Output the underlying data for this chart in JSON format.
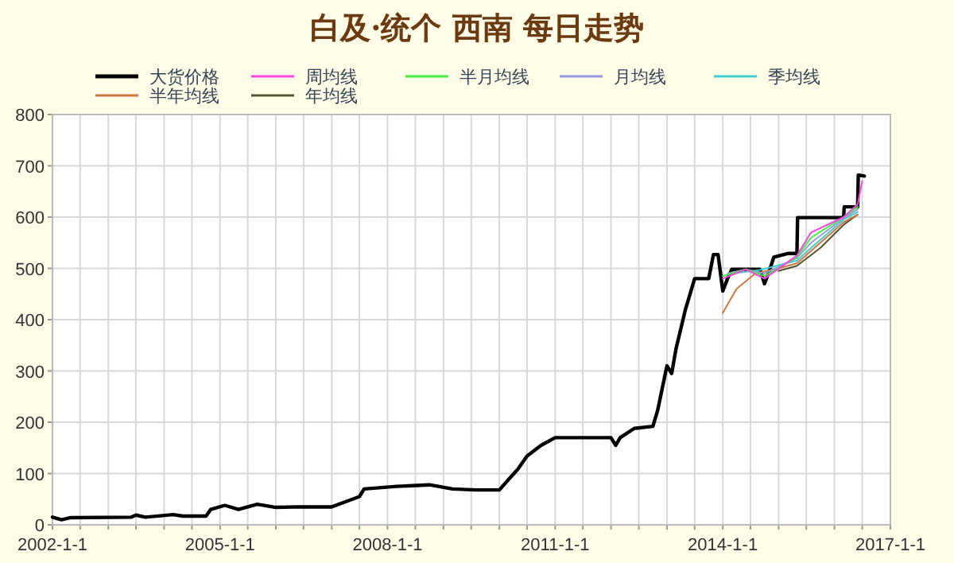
{
  "chart_data": {
    "type": "line",
    "title": "白及·统个 西南 每日走势",
    "xlim": [
      "2002-01-01",
      "2017-01-01"
    ],
    "ylim": [
      0,
      800
    ],
    "yticks": [
      0,
      100,
      200,
      300,
      400,
      500,
      600,
      700,
      800
    ],
    "xticks": [
      {
        "value": "2002-01-01",
        "label": "2002-1-1"
      },
      {
        "value": "2002-07-01",
        "label": null
      },
      {
        "value": "2003-01-01",
        "label": null
      },
      {
        "value": "2003-07-01",
        "label": null
      },
      {
        "value": "2004-01-01",
        "label": null
      },
      {
        "value": "2004-07-01",
        "label": null
      },
      {
        "value": "2005-01-01",
        "label": "2005-1-1"
      },
      {
        "value": "2005-07-01",
        "label": null
      },
      {
        "value": "2006-01-01",
        "label": null
      },
      {
        "value": "2006-07-01",
        "label": null
      },
      {
        "value": "2007-01-01",
        "label": null
      },
      {
        "value": "2007-07-01",
        "label": null
      },
      {
        "value": "2008-01-01",
        "label": "2008-1-1"
      },
      {
        "value": "2008-07-01",
        "label": null
      },
      {
        "value": "2009-01-01",
        "label": null
      },
      {
        "value": "2009-07-01",
        "label": null
      },
      {
        "value": "2010-01-01",
        "label": null
      },
      {
        "value": "2010-07-01",
        "label": null
      },
      {
        "value": "2011-01-01",
        "label": "2011-1-1"
      },
      {
        "value": "2011-07-01",
        "label": null
      },
      {
        "value": "2012-01-01",
        "label": null
      },
      {
        "value": "2012-07-01",
        "label": null
      },
      {
        "value": "2013-01-01",
        "label": null
      },
      {
        "value": "2013-07-01",
        "label": null
      },
      {
        "value": "2014-01-01",
        "label": "2014-1-1"
      },
      {
        "value": "2014-07-01",
        "label": null
      },
      {
        "value": "2015-01-01",
        "label": null
      },
      {
        "value": "2015-07-01",
        "label": null
      },
      {
        "value": "2016-01-01",
        "label": null
      },
      {
        "value": "2016-07-01",
        "label": null
      },
      {
        "value": "2017-01-01",
        "label": "2017-1-1"
      }
    ],
    "grid": true,
    "legend": "top",
    "series": [
      {
        "name": "大货价格",
        "color": "#000000",
        "x": [
          "2002-01-01",
          "2002-03-01",
          "2002-05-01",
          "2003-06-01",
          "2003-07-01",
          "2003-09-01",
          "2004-03-01",
          "2004-05-01",
          "2004-10-01",
          "2004-11-01",
          "2005-02-01",
          "2005-05-01",
          "2005-09-01",
          "2006-01-01",
          "2006-06-01",
          "2007-01-01",
          "2007-04-01",
          "2007-07-01",
          "2007-08-01",
          "2008-03-01",
          "2008-10-01",
          "2009-03-01",
          "2009-08-01",
          "2010-01-01",
          "2010-03-01",
          "2010-05-01",
          "2010-07-01",
          "2010-10-01",
          "2011-01-01",
          "2012-01-01",
          "2012-02-01",
          "2012-03-01",
          "2012-06-01",
          "2012-10-01",
          "2012-11-01",
          "2013-01-01",
          "2013-02-01",
          "2013-03-01",
          "2013-05-01",
          "2013-07-01",
          "2013-10-01",
          "2013-11-01",
          "2013-12-01",
          "2014-01-01",
          "2014-02-01",
          "2014-03-01",
          "2014-09-01",
          "2014-10-01",
          "2014-11-01",
          "2014-12-01",
          "2015-03-01",
          "2015-05-01",
          "2015-05-05",
          "2016-03-01",
          "2016-03-05",
          "2016-06-01",
          "2016-06-05",
          "2016-07-15"
        ],
        "values": [
          15,
          10,
          14,
          15,
          19,
          15,
          20,
          17,
          17,
          30,
          38,
          30,
          40,
          34,
          35,
          35,
          45,
          55,
          70,
          75,
          78,
          70,
          68,
          68,
          88,
          108,
          134,
          155,
          170,
          170,
          155,
          170,
          188,
          192,
          223,
          310,
          295,
          343,
          419,
          480,
          480,
          527,
          527,
          456,
          480,
          498,
          498,
          470,
          495,
          522,
          529,
          529,
          599,
          599,
          620,
          620,
          682,
          680
        ]
      },
      {
        "name": "周均线",
        "color": "#ff44dd",
        "x": [
          "2014-01-01",
          "2014-06-01",
          "2014-10-01",
          "2015-05-01",
          "2015-08-01",
          "2016-03-01",
          "2016-06-01",
          "2016-07-01"
        ],
        "values": [
          480,
          498,
          480,
          525,
          570,
          600,
          625,
          670
        ]
      },
      {
        "name": "半月均线",
        "color": "#44ee44",
        "x": [
          "2014-01-01",
          "2014-06-01",
          "2014-10-01",
          "2015-05-01",
          "2015-08-01",
          "2016-03-01",
          "2016-06-01"
        ],
        "values": [
          485,
          498,
          485,
          522,
          560,
          600,
          620
        ]
      },
      {
        "name": "月均线",
        "color": "#9999dd",
        "x": [
          "2014-02-01",
          "2014-06-01",
          "2014-10-01",
          "2015-05-01",
          "2015-08-01",
          "2016-03-01",
          "2016-06-01"
        ],
        "values": [
          490,
          498,
          490,
          520,
          550,
          598,
          615
        ]
      },
      {
        "name": "季均线",
        "color": "#44cccc",
        "x": [
          "2014-03-01",
          "2014-09-01",
          "2015-05-01",
          "2015-08-01",
          "2016-03-01",
          "2016-06-01"
        ],
        "values": [
          490,
          497,
          515,
          540,
          595,
          610
        ]
      },
      {
        "name": "半年均线",
        "color": "#cc7744",
        "x": [
          "2014-01-01",
          "2014-04-01",
          "2014-08-01",
          "2015-01-01",
          "2015-05-01",
          "2015-10-01",
          "2016-03-01",
          "2016-06-01"
        ],
        "values": [
          413,
          460,
          490,
          500,
          510,
          550,
          590,
          605
        ]
      },
      {
        "name": "年均线",
        "color": "#555533",
        "x": [
          "2015-01-01",
          "2015-05-01",
          "2015-10-01",
          "2016-03-01",
          "2016-06-01"
        ],
        "values": [
          495,
          505,
          540,
          585,
          605
        ]
      }
    ]
  }
}
